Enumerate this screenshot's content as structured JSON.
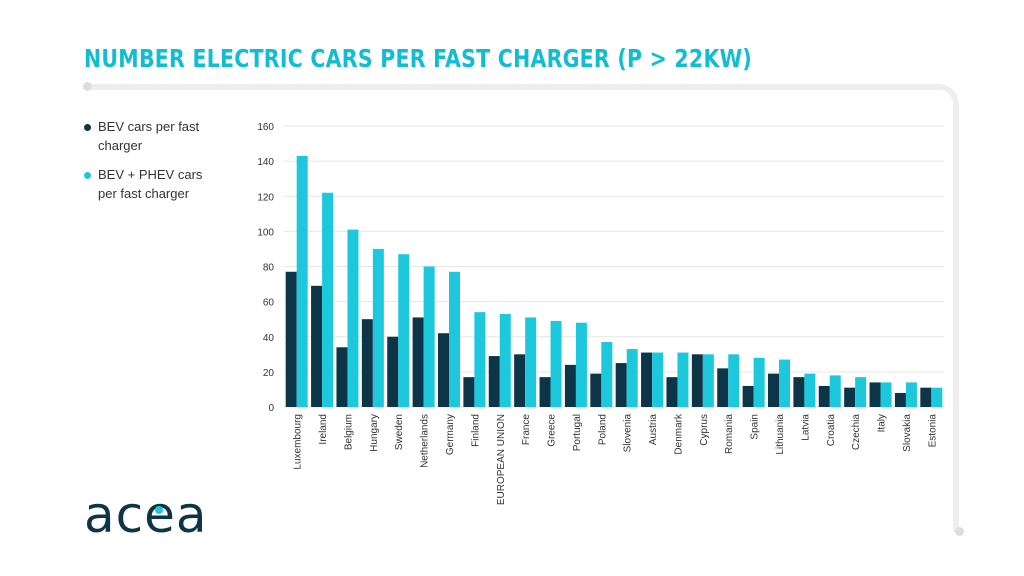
{
  "page": {
    "title": "NUMBER ELECTRIC CARS PER FAST CHARGER (P > 22KW)"
  },
  "colors": {
    "title": "#12bcd1",
    "bev": "#0d3447",
    "phev": "#1ec8dc",
    "logo": "#0d3447",
    "logo_dot": "#1ec8dc",
    "grid": "#e6e6e6"
  },
  "legend": {
    "items": [
      {
        "label": "BEV cars per fast charger",
        "color": "#0d3447"
      },
      {
        "label": "BEV + PHEV cars per fast charger",
        "color": "#1ec8dc"
      }
    ]
  },
  "brand": {
    "logo_text": "acea",
    "icon": "acea-logo-icon"
  },
  "chart_data": {
    "type": "bar",
    "title": "NUMBER ELECTRIC CARS PER FAST CHARGER (P > 22KW)",
    "xlabel": "",
    "ylabel": "",
    "ylim": [
      0,
      160
    ],
    "yticks": [
      0,
      20,
      40,
      60,
      80,
      100,
      120,
      140,
      160
    ],
    "grid": true,
    "legend_position": "left",
    "categories": [
      "Luxembourg",
      "Ireland",
      "Belgium",
      "Hungary",
      "Sweden",
      "Netherlands",
      "Germany",
      "Finland",
      "EUROPEAN UNION",
      "France",
      "Greece",
      "Portugal",
      "Poland",
      "Slovenia",
      "Austria",
      "Denmark",
      "Cyprus",
      "Romania",
      "Spain",
      "Lithuania",
      "Latvia",
      "Croatia",
      "Czechia",
      "Italy",
      "Slovakia",
      "Estonia"
    ],
    "series": [
      {
        "name": "BEV cars per fast charger",
        "values": [
          77,
          69,
          34,
          50,
          40,
          51,
          42,
          17,
          29,
          30,
          17,
          24,
          19,
          25,
          31,
          17,
          30,
          22,
          12,
          19,
          17,
          12,
          11,
          14,
          8,
          11
        ]
      },
      {
        "name": "BEV + PHEV cars per fast charger",
        "values": [
          143,
          122,
          101,
          90,
          87,
          80,
          77,
          54,
          53,
          51,
          49,
          48,
          37,
          33,
          31,
          31,
          30,
          30,
          28,
          27,
          19,
          18,
          17,
          14,
          14,
          11
        ]
      }
    ]
  }
}
